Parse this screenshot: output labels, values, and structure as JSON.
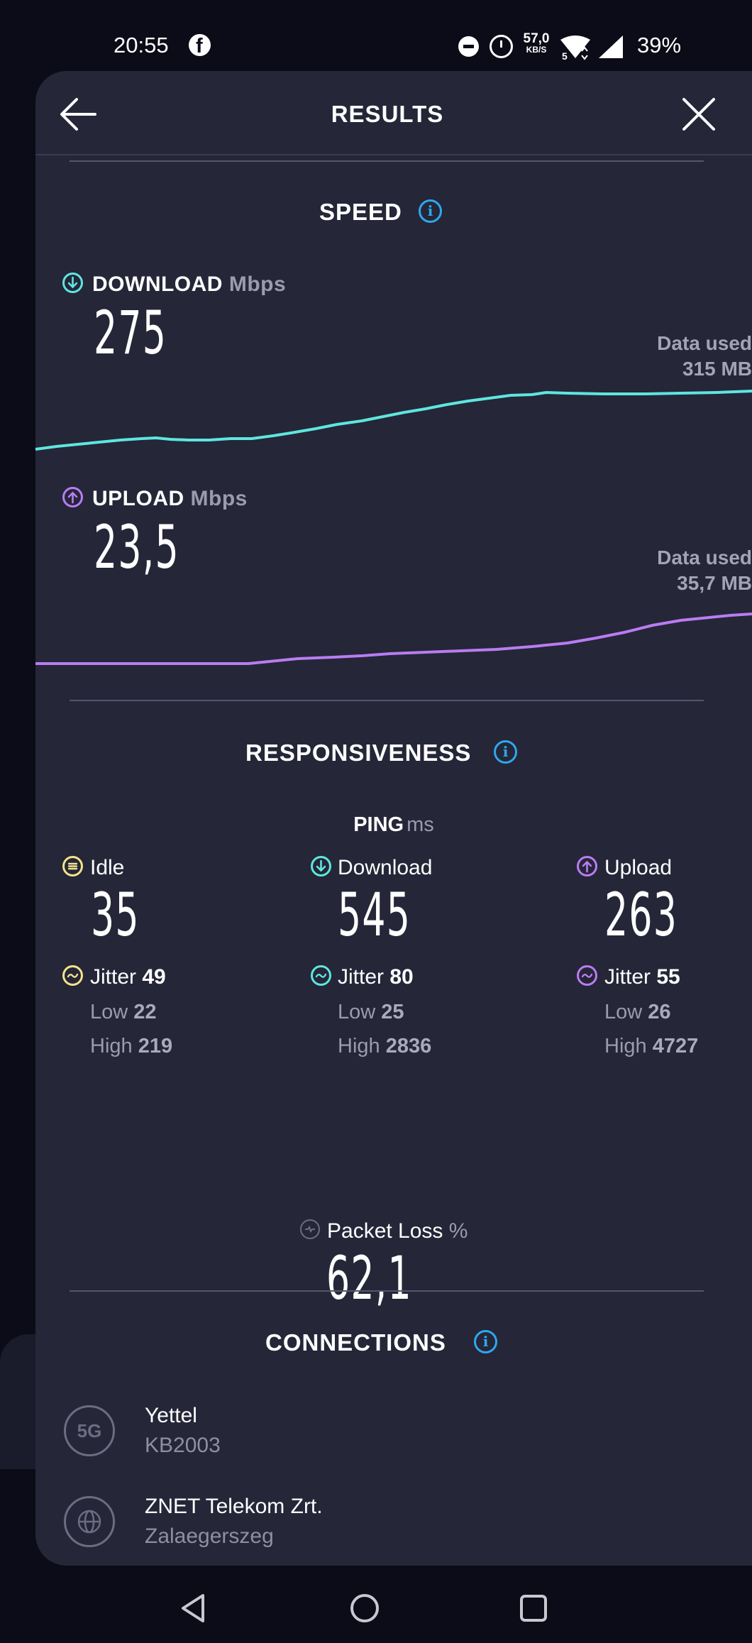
{
  "status_bar": {
    "time": "20:55",
    "app_icon": "facebook-icon",
    "net_speed_value": "57,0",
    "net_speed_unit": "KB/S",
    "wifi_label": "5",
    "battery": "39%"
  },
  "header": {
    "title": "RESULTS",
    "back_icon": "arrow-left-icon",
    "close_icon": "close-icon"
  },
  "speed": {
    "title": "SPEED",
    "download": {
      "label": "DOWNLOAD",
      "unit": "Mbps",
      "value": "275",
      "data_used_label": "Data used",
      "data_used_value": "315 MB",
      "color": "#5ee6df"
    },
    "upload": {
      "label": "UPLOAD",
      "unit": "Mbps",
      "value": "23,5",
      "data_used_label": "Data used",
      "data_used_value": "35,7 MB",
      "color": "#b97cf2"
    }
  },
  "responsiveness": {
    "title": "RESPONSIVENESS",
    "ping_label": "PING",
    "ping_unit": "ms",
    "columns": [
      {
        "label": "Idle",
        "value": "35",
        "jitter_label": "Jitter",
        "jitter": "49",
        "low_label": "Low",
        "low": "22",
        "high_label": "High",
        "high": "219",
        "color": "#f2e38a",
        "icon": "idle-icon"
      },
      {
        "label": "Download",
        "value": "545",
        "jitter_label": "Jitter",
        "jitter": "80",
        "low_label": "Low",
        "low": "25",
        "high_label": "High",
        "high": "2836",
        "color": "#5ee6df",
        "icon": "download-arrow-icon"
      },
      {
        "label": "Upload",
        "value": "263",
        "jitter_label": "Jitter",
        "jitter": "55",
        "low_label": "Low",
        "low": "26",
        "high_label": "High",
        "high": "4727",
        "color": "#b97cf2",
        "icon": "upload-arrow-icon"
      }
    ],
    "packet_loss_label": "Packet Loss",
    "packet_loss_unit": "%",
    "packet_loss_value": "62,1"
  },
  "connections": {
    "title": "CONNECTIONS",
    "items": [
      {
        "icon_text": "5G",
        "icon": "5g-icon",
        "name": "Yettel",
        "sub": "KB2003"
      },
      {
        "icon": "globe-icon",
        "name": "ZNET Telekom Zrt.",
        "sub": "Zalaegerszeg"
      }
    ]
  },
  "nav": {
    "back": "nav-back-icon",
    "home": "nav-home-icon",
    "recents": "nav-recents-icon"
  }
}
